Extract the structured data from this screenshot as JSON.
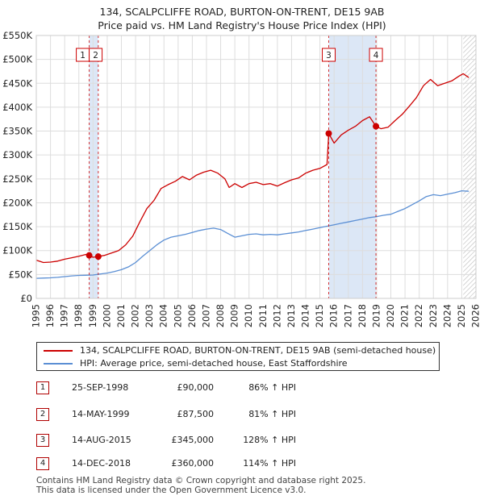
{
  "title_line1": "134, SCALPCLIFFE ROAD, BURTON-ON-TRENT, DE15 9AB",
  "title_line2": "Price paid vs. HM Land Registry's House Price Index (HPI)",
  "colors": {
    "property": "#cc0000",
    "hpi": "#5b8fd4",
    "shade": "#dce7f6",
    "marker_box": "#cc0000",
    "grid": "#dddddd"
  },
  "legend": {
    "property_label": "134, SCALPCLIFFE ROAD, BURTON-ON-TRENT, DE15 9AB (semi-detached house)",
    "hpi_label": "HPI: Average price, semi-detached house, East Staffordshire"
  },
  "sales": [
    {
      "num": "1",
      "date": "25-SEP-1998",
      "price": "£90,000",
      "hpi": "86% ↑ HPI"
    },
    {
      "num": "2",
      "date": "14-MAY-1999",
      "price": "£87,500",
      "hpi": "81% ↑ HPI"
    },
    {
      "num": "3",
      "date": "14-AUG-2015",
      "price": "£345,000",
      "hpi": "128% ↑ HPI"
    },
    {
      "num": "4",
      "date": "14-DEC-2018",
      "price": "£360,000",
      "hpi": "114% ↑ HPI"
    }
  ],
  "footer": {
    "line1": "Contains HM Land Registry data © Crown copyright and database right 2025.",
    "line2": "This data is licensed under the Open Government Licence v3.0."
  },
  "chart_data": {
    "type": "line",
    "ylim": [
      0,
      550000
    ],
    "xlim": [
      1995,
      2026
    ],
    "y_ticks": [
      0,
      50000,
      100000,
      150000,
      200000,
      250000,
      300000,
      350000,
      400000,
      450000,
      500000,
      550000
    ],
    "y_tick_labels": [
      "£0",
      "£50K",
      "£100K",
      "£150K",
      "£200K",
      "£250K",
      "£300K",
      "£350K",
      "£400K",
      "£450K",
      "£500K",
      "£550K"
    ],
    "x_ticks": [
      1995,
      1996,
      1997,
      1998,
      1999,
      2000,
      2001,
      2002,
      2003,
      2004,
      2005,
      2006,
      2007,
      2008,
      2009,
      2010,
      2011,
      2012,
      2013,
      2014,
      2015,
      2016,
      2017,
      2018,
      2019,
      2020,
      2021,
      2022,
      2023,
      2024,
      2025,
      2026
    ],
    "x_tick_labels": [
      "1995",
      "1996",
      "1997",
      "1998",
      "1999",
      "2000",
      "2001",
      "2002",
      "2003",
      "2004",
      "2005",
      "2006",
      "2007",
      "2008",
      "2009",
      "2010",
      "2011",
      "2012",
      "2013",
      "2014",
      "2015",
      "2016",
      "2017",
      "2018",
      "2019",
      "2020",
      "2021",
      "2022",
      "2023",
      "2024",
      "2025",
      "2026"
    ],
    "shaded_ranges": [
      [
        1998.73,
        1999.37
      ],
      [
        2015.62,
        2018.95
      ]
    ],
    "future_hatch_from": 2025.1,
    "sale_markers": [
      {
        "label": "1",
        "x": 1998.73,
        "y": 90000
      },
      {
        "label": "2",
        "x": 1999.37,
        "y": 87500
      },
      {
        "label": "3",
        "x": 2015.62,
        "y": 345000
      },
      {
        "label": "4",
        "x": 2018.95,
        "y": 360000
      }
    ],
    "series": [
      {
        "name": "134, SCALPCLIFFE ROAD, BURTON-ON-TRENT, DE15 9AB (semi-detached house)",
        "x": [
          1995,
          1995.5,
          1996,
          1996.5,
          1997,
          1997.5,
          1998,
          1998.5,
          1998.73,
          1999,
          1999.37,
          1999.8,
          2000.3,
          2000.8,
          2001.3,
          2001.8,
          2002.3,
          2002.8,
          2003.3,
          2003.8,
          2004.3,
          2004.8,
          2005.3,
          2005.8,
          2006.3,
          2006.8,
          2007.3,
          2007.8,
          2008.3,
          2008.6,
          2009,
          2009.5,
          2010,
          2010.5,
          2011,
          2011.5,
          2012,
          2012.5,
          2013,
          2013.5,
          2014,
          2014.5,
          2015,
          2015.5,
          2015.62,
          2016,
          2016.5,
          2017,
          2017.5,
          2018,
          2018.5,
          2018.95,
          2019.3,
          2019.8,
          2020.3,
          2020.8,
          2021.3,
          2021.8,
          2022.3,
          2022.8,
          2023.3,
          2023.8,
          2024.3,
          2024.8,
          2025.1,
          2025.5
        ],
        "values": [
          80000,
          75000,
          76000,
          78000,
          82000,
          85000,
          88000,
          92000,
          90000,
          86000,
          87500,
          90000,
          95000,
          100000,
          112000,
          130000,
          160000,
          188000,
          205000,
          230000,
          238000,
          245000,
          255000,
          248000,
          258000,
          264000,
          268000,
          262000,
          250000,
          232000,
          240000,
          232000,
          240000,
          243000,
          238000,
          240000,
          235000,
          242000,
          248000,
          252000,
          262000,
          268000,
          272000,
          280000,
          345000,
          325000,
          342000,
          352000,
          360000,
          372000,
          380000,
          360000,
          355000,
          358000,
          372000,
          385000,
          402000,
          420000,
          445000,
          458000,
          445000,
          450000,
          455000,
          465000,
          470000,
          462000
        ]
      },
      {
        "name": "HPI: Average price, semi-detached house, East Staffordshire",
        "x": [
          1995,
          1995.5,
          1996,
          1996.5,
          1997,
          1997.5,
          1998,
          1998.5,
          1999,
          1999.5,
          2000,
          2000.5,
          2001,
          2001.5,
          2002,
          2002.5,
          2003,
          2003.5,
          2004,
          2004.5,
          2005,
          2005.5,
          2006,
          2006.5,
          2007,
          2007.5,
          2008,
          2008.5,
          2009,
          2009.5,
          2010,
          2010.5,
          2011,
          2011.5,
          2012,
          2012.5,
          2013,
          2013.5,
          2014,
          2014.5,
          2015,
          2015.5,
          2016,
          2016.5,
          2017,
          2017.5,
          2018,
          2018.5,
          2019,
          2019.5,
          2020,
          2020.5,
          2021,
          2021.5,
          2022,
          2022.5,
          2023,
          2023.5,
          2024,
          2024.5,
          2025,
          2025.5
        ],
        "values": [
          42000,
          42500,
          43000,
          44000,
          45500,
          47000,
          48000,
          48500,
          49000,
          51000,
          53000,
          56000,
          60000,
          66000,
          75000,
          88000,
          100000,
          112000,
          122000,
          128000,
          131000,
          134000,
          138000,
          142000,
          145000,
          147000,
          144000,
          136000,
          128000,
          131000,
          134000,
          135000,
          133000,
          134000,
          133000,
          135000,
          137000,
          139000,
          142000,
          145000,
          148000,
          151000,
          154000,
          157000,
          160000,
          163000,
          166000,
          169000,
          171000,
          174000,
          176000,
          182000,
          188000,
          196000,
          204000,
          213000,
          217000,
          215000,
          218000,
          221000,
          225000,
          224000
        ]
      }
    ]
  }
}
